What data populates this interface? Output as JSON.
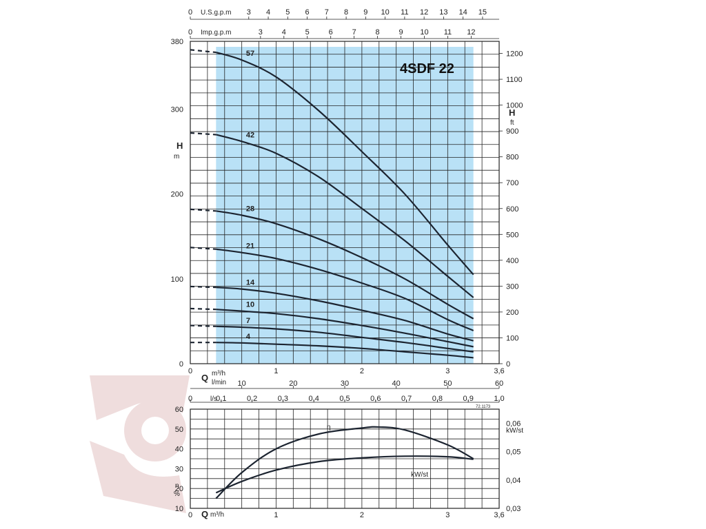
{
  "chart_data": [
    {
      "type": "line",
      "title": "4SDF 22",
      "flow_axes": {
        "usgpm": {
          "label": "U.S.g.p.m",
          "ticks": [
            "0",
            "3",
            "4",
            "5",
            "6",
            "7",
            "8",
            "9",
            "10",
            "11",
            "12",
            "13",
            "14",
            "15"
          ]
        },
        "impgpm": {
          "label": "Imp.g.p.m",
          "ticks": [
            "0",
            "3",
            "4",
            "5",
            "6",
            "7",
            "8",
            "9",
            "10",
            "11",
            "12"
          ]
        },
        "m3h": {
          "label_q": "Q",
          "label": "m³/h",
          "ticks": [
            "0",
            "1",
            "2",
            "3",
            "3,6"
          ]
        },
        "lmin": {
          "label": "l/min",
          "ticks": [
            "10",
            "20",
            "30",
            "40",
            "50",
            "60"
          ]
        },
        "ls": {
          "label": "l/s",
          "ticks": [
            "0",
            "0,1",
            "0,2",
            "0,3",
            "0,4",
            "0,5",
            "0,6",
            "0,7",
            "0,8",
            "0,9",
            "1,0"
          ]
        }
      },
      "xlim": [
        0,
        3.6
      ],
      "left_axis": {
        "label": "H",
        "unit": "m",
        "ticks": [
          "0",
          "100",
          "200",
          "300",
          "380"
        ],
        "ylim": [
          0,
          380
        ]
      },
      "right_axis": {
        "label": "H",
        "unit": "ft",
        "ticks": [
          "0",
          "100",
          "200",
          "300",
          "400",
          "500",
          "600",
          "700",
          "800",
          "900",
          "1000",
          "1100",
          "1200"
        ]
      },
      "operating_range_m3h": [
        0.3,
        3.3
      ],
      "series": [
        {
          "name": "57",
          "x": [
            0,
            0.3,
            0.6,
            1.0,
            1.5,
            2.0,
            2.5,
            3.0,
            3.3
          ],
          "y": [
            370,
            367,
            358,
            338,
            298,
            250,
            200,
            140,
            105
          ]
        },
        {
          "name": "42",
          "x": [
            0,
            0.3,
            0.6,
            1.0,
            1.5,
            2.0,
            2.5,
            3.0,
            3.3
          ],
          "y": [
            272,
            270,
            262,
            248,
            220,
            183,
            145,
            103,
            78
          ]
        },
        {
          "name": "28",
          "x": [
            0,
            0.3,
            0.6,
            1.0,
            1.5,
            2.0,
            2.5,
            3.0,
            3.3
          ],
          "y": [
            182,
            180,
            175,
            165,
            147,
            125,
            100,
            70,
            53
          ]
        },
        {
          "name": "21",
          "x": [
            0,
            0.3,
            0.6,
            1.0,
            1.5,
            2.0,
            2.5,
            3.0,
            3.3
          ],
          "y": [
            137,
            135,
            131,
            124,
            111,
            95,
            77,
            52,
            39
          ]
        },
        {
          "name": "14",
          "x": [
            0,
            0.3,
            0.6,
            1.0,
            1.5,
            2.0,
            2.5,
            3.0,
            3.3
          ],
          "y": [
            91,
            90,
            88,
            83,
            74,
            63,
            51,
            35,
            27
          ]
        },
        {
          "name": "10",
          "x": [
            0,
            0.3,
            0.6,
            1.0,
            1.5,
            2.0,
            2.5,
            3.0,
            3.3
          ],
          "y": [
            65,
            64,
            62,
            59,
            53,
            45,
            36,
            26,
            20
          ]
        },
        {
          "name": "7",
          "x": [
            0,
            0.3,
            0.6,
            1.0,
            1.5,
            2.0,
            2.5,
            3.0,
            3.3
          ],
          "y": [
            45,
            44,
            43,
            41,
            37,
            31,
            25,
            18,
            14
          ]
        },
        {
          "name": "4",
          "x": [
            0,
            0.3,
            0.6,
            1.0,
            1.5,
            2.0,
            2.5,
            3.0,
            3.3
          ],
          "y": [
            25,
            25,
            24.5,
            23,
            21,
            18,
            14,
            10,
            7
          ]
        }
      ],
      "grid": true
    },
    {
      "type": "line",
      "xlim": [
        0,
        3.6
      ],
      "x_axis": {
        "label_q": "Q",
        "label": "m³/h",
        "ticks": [
          "0",
          "1",
          "2",
          "3",
          "3,6"
        ]
      },
      "left_axis": {
        "label": "η",
        "unit": "%",
        "ticks": [
          "10",
          "20",
          "30",
          "40",
          "50",
          "60"
        ],
        "ylim": [
          10,
          60
        ]
      },
      "right_axis": {
        "label": "kW/st",
        "ticks": [
          "0,03",
          "0,04",
          "0,05",
          "0,06"
        ],
        "ylim": [
          0.03,
          0.065
        ]
      },
      "series": [
        {
          "name": "η",
          "axis": "left",
          "x": [
            0.3,
            0.6,
            1.0,
            1.5,
            2.0,
            2.2,
            2.5,
            3.0,
            3.3
          ],
          "y": [
            15,
            28,
            40,
            47.5,
            50.5,
            51,
            49.5,
            42,
            35
          ]
        },
        {
          "name": "kW/st",
          "axis": "right",
          "x": [
            0.3,
            0.6,
            1.0,
            1.5,
            2.0,
            2.5,
            3.0,
            3.3
          ],
          "y": [
            0.0355,
            0.0395,
            0.0435,
            0.0465,
            0.0478,
            0.0484,
            0.0482,
            0.0473
          ]
        }
      ],
      "grid": true
    }
  ],
  "colors": {
    "operating_band": "#b9e1f6",
    "curve": "#1c2430",
    "watermark": "#e9cfcf"
  },
  "code": "72.1173"
}
